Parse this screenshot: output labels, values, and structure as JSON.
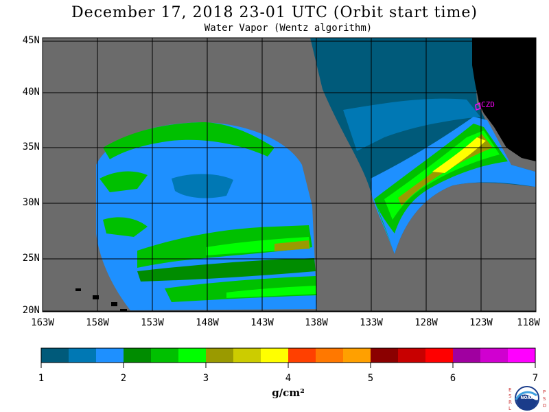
{
  "header": {
    "title": "December 17, 2018  23-01 UTC  (Orbit start time)",
    "subtitle": "Water Vapor (Wentz algorithm)"
  },
  "map": {
    "lat_labels": [
      "45N",
      "40N",
      "35N",
      "30N",
      "25N",
      "20N"
    ],
    "lon_labels": [
      "163W",
      "158W",
      "153W",
      "148W",
      "143W",
      "138W",
      "133W",
      "128W",
      "123W",
      "118W"
    ],
    "station_label": "CZD",
    "colors": {
      "no_data": "#6b6b6b",
      "land": "#000000",
      "grid": "#000000",
      "station": "#ff00ff"
    }
  },
  "colorbar": {
    "tick_labels": [
      "1",
      "2",
      "3",
      "4",
      "5",
      "6",
      "7"
    ],
    "units": "g/cm²",
    "colors": [
      "#005a7a",
      "#0078b4",
      "#1e90ff",
      "#008c00",
      "#00c000",
      "#00ff00",
      "#9a9a00",
      "#cccc00",
      "#ffff00",
      "#ff4000",
      "#ff7800",
      "#ffa000",
      "#8b0000",
      "#c80000",
      "#ff0000",
      "#a000a0",
      "#d000d0",
      "#ff00ff"
    ]
  },
  "logo": {
    "left_text": "ESRL",
    "right_text": "PSD",
    "center_text": "NOAA"
  }
}
